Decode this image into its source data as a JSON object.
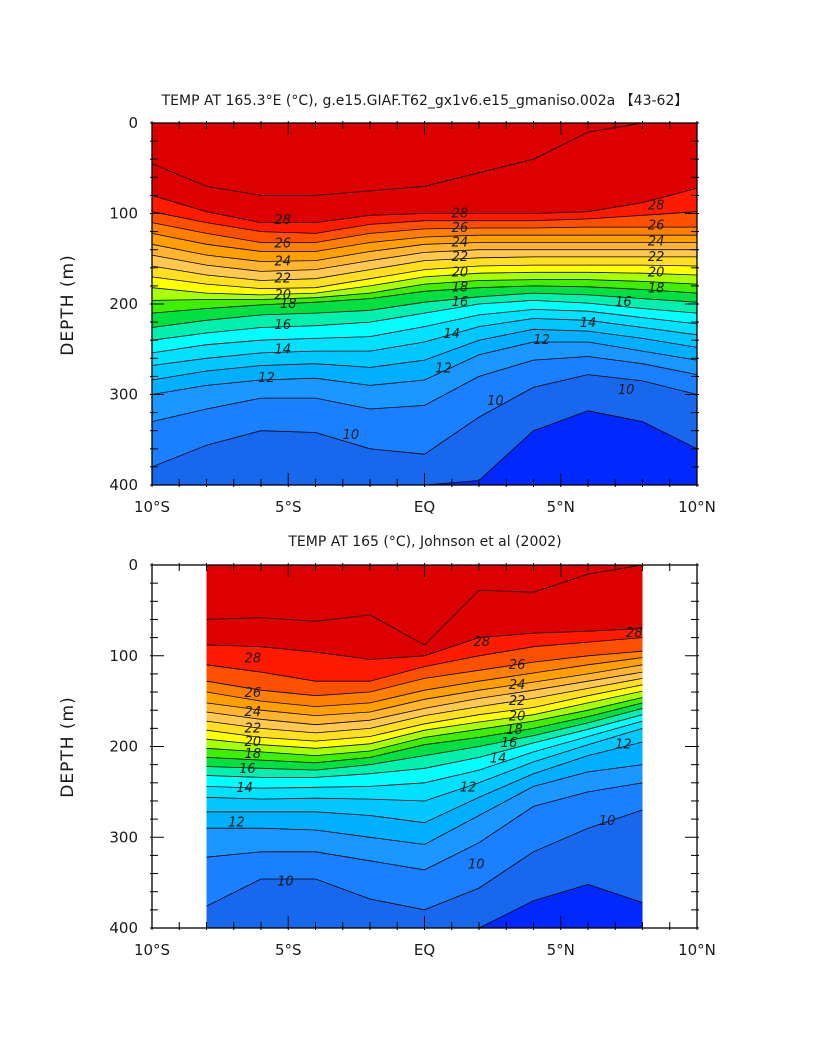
{
  "chart_data": [
    {
      "type": "contour",
      "title": "TEMP AT 165.3°E (°C), g.e15.GIAF.T62_gx1v6.e15_gmaniso.002a 【43-62】",
      "xlabel": "",
      "ylabel": "DEPTH (m)",
      "xlim": [
        -10,
        10
      ],
      "ylim": [
        400,
        0
      ],
      "x_ticks": [
        -10,
        -5,
        0,
        5,
        10
      ],
      "x_tick_labels": [
        "10°S",
        "5°S",
        "EQ",
        "5°N",
        "10°N"
      ],
      "y_ticks": [
        0,
        100,
        200,
        300,
        400
      ],
      "y_tick_labels": [
        "0",
        "100",
        "200",
        "300",
        "400"
      ],
      "data_xrange": [
        -10,
        10
      ],
      "levels": [
        29,
        28,
        27,
        26,
        25,
        24,
        23,
        22,
        21,
        20,
        19,
        18,
        17,
        16,
        15,
        14,
        13,
        12,
        11,
        10,
        9
      ],
      "isotherm_x": [
        -10,
        -8,
        -6,
        -4,
        -2,
        0,
        2,
        4,
        6,
        8,
        10
      ],
      "isotherms": [
        {
          "t": 29,
          "depth": [
            45,
            70,
            80,
            80,
            75,
            70,
            55,
            40,
            10,
            0,
            0
          ]
        },
        {
          "t": 28,
          "depth": [
            80,
            98,
            110,
            110,
            102,
            100,
            100,
            100,
            98,
            88,
            72
          ]
        },
        {
          "t": 27,
          "depth": [
            98,
            110,
            120,
            122,
            112,
            108,
            108,
            108,
            106,
            102,
            98
          ]
        },
        {
          "t": 26,
          "depth": [
            110,
            122,
            132,
            132,
            122,
            117,
            116,
            116,
            115,
            115,
            115
          ]
        },
        {
          "t": 25,
          "depth": [
            122,
            134,
            142,
            142,
            132,
            126,
            124,
            124,
            124,
            124,
            124
          ]
        },
        {
          "t": 24,
          "depth": [
            134,
            146,
            153,
            152,
            142,
            134,
            132,
            132,
            132,
            132,
            132
          ]
        },
        {
          "t": 23,
          "depth": [
            146,
            157,
            164,
            162,
            152,
            143,
            140,
            140,
            140,
            140,
            140
          ]
        },
        {
          "t": 22,
          "depth": [
            158,
            168,
            174,
            172,
            162,
            152,
            149,
            148,
            148,
            148,
            148
          ]
        },
        {
          "t": 21,
          "depth": [
            170,
            178,
            183,
            182,
            172,
            162,
            158,
            157,
            157,
            157,
            158
          ]
        },
        {
          "t": 20,
          "depth": [
            182,
            188,
            190,
            188,
            180,
            170,
            166,
            165,
            165,
            166,
            168
          ]
        },
        {
          "t": 19,
          "depth": [
            196,
            195,
            195,
            193,
            188,
            178,
            174,
            173,
            173,
            175,
            178
          ]
        },
        {
          "t": 18,
          "depth": [
            210,
            205,
            201,
            198,
            194,
            186,
            182,
            180,
            181,
            184,
            188
          ]
        },
        {
          "t": 17,
          "depth": [
            226,
            218,
            212,
            210,
            207,
            198,
            192,
            188,
            190,
            194,
            198
          ]
        },
        {
          "t": 16,
          "depth": [
            240,
            232,
            226,
            224,
            220,
            210,
            200,
            196,
            199,
            205,
            210
          ]
        },
        {
          "t": 15,
          "depth": [
            254,
            245,
            240,
            238,
            236,
            225,
            212,
            206,
            208,
            215,
            222
          ]
        },
        {
          "t": 14,
          "depth": [
            268,
            260,
            254,
            252,
            252,
            242,
            225,
            216,
            218,
            226,
            234
          ]
        },
        {
          "t": 13,
          "depth": [
            284,
            274,
            268,
            266,
            270,
            262,
            240,
            228,
            230,
            238,
            248
          ]
        },
        {
          "t": 12,
          "depth": [
            300,
            290,
            284,
            282,
            290,
            284,
            256,
            242,
            242,
            252,
            262
          ]
        },
        {
          "t": 11,
          "depth": [
            330,
            316,
            304,
            304,
            316,
            312,
            280,
            262,
            258,
            266,
            278
          ]
        },
        {
          "t": 10,
          "depth": [
            380,
            356,
            340,
            342,
            360,
            366,
            325,
            292,
            278,
            285,
            300
          ]
        },
        {
          "t": 9,
          "depth": [
            405,
            405,
            400,
            405,
            405,
            405,
            395,
            340,
            318,
            330,
            360
          ]
        }
      ],
      "contour_labels": [
        {
          "text": "28",
          "x": -5.2,
          "depth": 107
        },
        {
          "text": "26",
          "x": -5.2,
          "depth": 133
        },
        {
          "text": "24",
          "x": -5.2,
          "depth": 153
        },
        {
          "text": "22",
          "x": -5.2,
          "depth": 172
        },
        {
          "text": "20",
          "x": -5.2,
          "depth": 190
        },
        {
          "text": "18",
          "x": -5.0,
          "depth": 200
        },
        {
          "text": "16",
          "x": -5.2,
          "depth": 223
        },
        {
          "text": "14",
          "x": -5.2,
          "depth": 250
        },
        {
          "text": "12",
          "x": -5.8,
          "depth": 282
        },
        {
          "text": "10",
          "x": -2.7,
          "depth": 345
        },
        {
          "text": "28",
          "x": 1.3,
          "depth": 100
        },
        {
          "text": "26",
          "x": 1.3,
          "depth": 116
        },
        {
          "text": "24",
          "x": 1.3,
          "depth": 132
        },
        {
          "text": "22",
          "x": 1.3,
          "depth": 148
        },
        {
          "text": "20",
          "x": 1.3,
          "depth": 165
        },
        {
          "text": "18",
          "x": 1.3,
          "depth": 182
        },
        {
          "text": "16",
          "x": 1.3,
          "depth": 198
        },
        {
          "text": "14",
          "x": 1.0,
          "depth": 233
        },
        {
          "text": "12",
          "x": 0.7,
          "depth": 271
        },
        {
          "text": "10",
          "x": 2.6,
          "depth": 307
        },
        {
          "text": "28",
          "x": 8.5,
          "depth": 91
        },
        {
          "text": "26",
          "x": 8.5,
          "depth": 113
        },
        {
          "text": "24",
          "x": 8.5,
          "depth": 131
        },
        {
          "text": "22",
          "x": 8.5,
          "depth": 148
        },
        {
          "text": "20",
          "x": 8.5,
          "depth": 165
        },
        {
          "text": "18",
          "x": 8.5,
          "depth": 183
        },
        {
          "text": "16",
          "x": 7.3,
          "depth": 198
        },
        {
          "text": "14",
          "x": 6.0,
          "depth": 221
        },
        {
          "text": "12",
          "x": 4.3,
          "depth": 240
        },
        {
          "text": "10",
          "x": 7.4,
          "depth": 295
        }
      ]
    },
    {
      "type": "contour",
      "title": "TEMP AT 165 (°C), Johnson et al (2002)",
      "xlabel": "",
      "ylabel": "DEPTH (m)",
      "xlim": [
        -10,
        10
      ],
      "ylim": [
        400,
        0
      ],
      "x_ticks": [
        -10,
        -5,
        0,
        5,
        10
      ],
      "x_tick_labels": [
        "10°S",
        "5°S",
        "EQ",
        "5°N",
        "10°N"
      ],
      "y_ticks": [
        0,
        100,
        200,
        300,
        400
      ],
      "y_tick_labels": [
        "0",
        "100",
        "200",
        "300",
        "400"
      ],
      "data_xrange": [
        -8,
        8
      ],
      "levels": [
        29,
        28,
        27,
        26,
        25,
        24,
        23,
        22,
        21,
        20,
        19,
        18,
        17,
        16,
        15,
        14,
        13,
        12,
        11,
        10,
        9
      ],
      "isotherm_x": [
        -8,
        -6,
        -4,
        -2,
        0,
        2,
        4,
        6,
        8
      ],
      "isotherms": [
        {
          "t": 29,
          "depth": [
            60,
            58,
            62,
            55,
            88,
            28,
            30,
            10,
            0
          ]
        },
        {
          "t": 28,
          "depth": [
            88,
            90,
            96,
            104,
            100,
            80,
            75,
            73,
            70
          ]
        },
        {
          "t": 27,
          "depth": [
            110,
            118,
            128,
            128,
            112,
            100,
            90,
            85,
            80
          ]
        },
        {
          "t": 26,
          "depth": [
            128,
            138,
            144,
            140,
            125,
            116,
            107,
            100,
            95
          ]
        },
        {
          "t": 25,
          "depth": [
            140,
            150,
            156,
            152,
            138,
            128,
            119,
            110,
            102
          ]
        },
        {
          "t": 24,
          "depth": [
            152,
            160,
            166,
            162,
            148,
            138,
            129,
            120,
            110
          ]
        },
        {
          "t": 23,
          "depth": [
            162,
            170,
            176,
            171,
            158,
            147,
            138,
            128,
            118
          ]
        },
        {
          "t": 22,
          "depth": [
            172,
            180,
            185,
            180,
            166,
            156,
            147,
            136,
            125
          ]
        },
        {
          "t": 21,
          "depth": [
            182,
            190,
            194,
            189,
            175,
            165,
            157,
            144,
            132
          ]
        },
        {
          "t": 20,
          "depth": [
            192,
            198,
            202,
            197,
            182,
            173,
            165,
            152,
            139
          ]
        },
        {
          "t": 19,
          "depth": [
            202,
            206,
            210,
            205,
            190,
            181,
            172,
            160,
            146
          ]
        },
        {
          "t": 18,
          "depth": [
            212,
            215,
            218,
            212,
            198,
            190,
            180,
            167,
            152
          ]
        },
        {
          "t": 17,
          "depth": [
            222,
            224,
            226,
            220,
            210,
            200,
            188,
            174,
            158
          ]
        },
        {
          "t": 16,
          "depth": [
            232,
            234,
            234,
            230,
            224,
            212,
            196,
            181,
            165
          ]
        },
        {
          "t": 15,
          "depth": [
            244,
            246,
            245,
            244,
            240,
            226,
            206,
            189,
            172
          ]
        },
        {
          "t": 14,
          "depth": [
            256,
            258,
            257,
            258,
            260,
            240,
            217,
            198,
            180
          ]
        },
        {
          "t": 13,
          "depth": [
            272,
            272,
            272,
            276,
            284,
            256,
            230,
            210,
            195
          ]
        },
        {
          "t": 12,
          "depth": [
            290,
            290,
            292,
            300,
            308,
            276,
            244,
            228,
            220
          ]
        },
        {
          "t": 11,
          "depth": [
            322,
            316,
            316,
            326,
            336,
            306,
            266,
            250,
            240
          ]
        },
        {
          "t": 10,
          "depth": [
            376,
            346,
            346,
            368,
            380,
            356,
            316,
            290,
            270
          ]
        },
        {
          "t": 9,
          "depth": [
            405,
            405,
            405,
            405,
            405,
            405,
            370,
            352,
            372
          ]
        }
      ],
      "contour_labels": [
        {
          "text": "28",
          "x": -6.3,
          "depth": 103
        },
        {
          "text": "26",
          "x": -6.3,
          "depth": 141
        },
        {
          "text": "24",
          "x": -6.3,
          "depth": 162
        },
        {
          "text": "22",
          "x": -6.3,
          "depth": 180
        },
        {
          "text": "20",
          "x": -6.3,
          "depth": 195
        },
        {
          "text": "18",
          "x": -6.3,
          "depth": 208
        },
        {
          "text": "16",
          "x": -6.5,
          "depth": 225
        },
        {
          "text": "14",
          "x": -6.6,
          "depth": 246
        },
        {
          "text": "12",
          "x": -6.9,
          "depth": 284
        },
        {
          "text": "10",
          "x": -5.1,
          "depth": 349
        },
        {
          "text": "28",
          "x": 2.1,
          "depth": 85
        },
        {
          "text": "26",
          "x": 3.4,
          "depth": 110
        },
        {
          "text": "24",
          "x": 3.4,
          "depth": 132
        },
        {
          "text": "22",
          "x": 3.4,
          "depth": 150
        },
        {
          "text": "20",
          "x": 3.4,
          "depth": 167
        },
        {
          "text": "18",
          "x": 3.3,
          "depth": 182
        },
        {
          "text": "16",
          "x": 3.1,
          "depth": 196
        },
        {
          "text": "14",
          "x": 2.7,
          "depth": 213
        },
        {
          "text": "12",
          "x": 1.6,
          "depth": 245
        },
        {
          "text": "10",
          "x": 1.9,
          "depth": 330
        },
        {
          "text": "28",
          "x": 7.7,
          "depth": 75
        },
        {
          "text": "12",
          "x": 7.3,
          "depth": 198
        },
        {
          "text": "10",
          "x": 6.7,
          "depth": 282
        }
      ]
    }
  ]
}
